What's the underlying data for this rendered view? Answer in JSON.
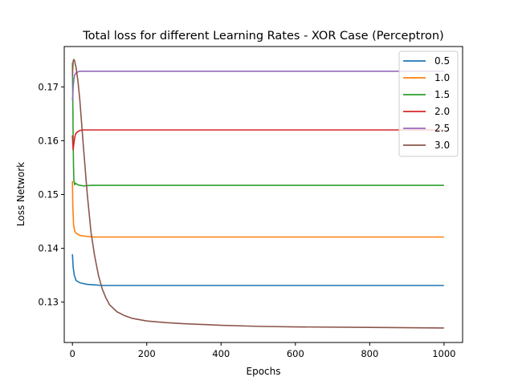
{
  "chart_data": {
    "type": "line",
    "title": "Total loss for different Learning Rates - XOR Case (Perceptron)",
    "xlabel": "Epochs",
    "ylabel": "Loss Network",
    "xlim": [
      -22,
      1050
    ],
    "ylim": [
      0.1225,
      0.1775
    ],
    "xticks": [
      0,
      200,
      400,
      600,
      800,
      1000
    ],
    "yticks": [
      0.13,
      0.14,
      0.15,
      0.16,
      0.17
    ],
    "xtick_labels": [
      "0",
      "200",
      "400",
      "600",
      "800",
      "1000"
    ],
    "ytick_labels": [
      "0.13",
      "0.14",
      "0.15",
      "0.16",
      "0.17"
    ],
    "legend": "top-right",
    "grid": false,
    "series": [
      {
        "name": "0.5",
        "color": "#1f77b4",
        "x": [
          0,
          2,
          5,
          10,
          20,
          40,
          60,
          80,
          100,
          150,
          200,
          400,
          600,
          800,
          1000
        ],
        "y": [
          0.1389,
          0.1365,
          0.135,
          0.134,
          0.1336,
          0.1333,
          0.1332,
          0.1331,
          0.1331,
          0.1331,
          0.1331,
          0.1331,
          0.1331,
          0.1331,
          0.1331
        ]
      },
      {
        "name": "1.0",
        "color": "#ff7f0e",
        "x": [
          0,
          1,
          3,
          6,
          10,
          20,
          40,
          60,
          100,
          200,
          400,
          600,
          800,
          1000
        ],
        "y": [
          0.1525,
          0.148,
          0.1445,
          0.1432,
          0.1428,
          0.1424,
          0.1422,
          0.1421,
          0.1421,
          0.1421,
          0.1421,
          0.1421,
          0.1421,
          0.1421
        ]
      },
      {
        "name": "1.5",
        "color": "#2ca02c",
        "x": [
          0,
          1,
          2,
          3,
          4,
          6,
          8,
          10,
          15,
          20,
          30,
          50,
          100,
          200,
          400,
          600,
          800,
          1000
        ],
        "y": [
          0.1745,
          0.168,
          0.16,
          0.155,
          0.1525,
          0.1518,
          0.1521,
          0.152,
          0.1518,
          0.1517,
          0.1516,
          0.1517,
          0.1517,
          0.1517,
          0.1517,
          0.1517,
          0.1517,
          0.1517
        ]
      },
      {
        "name": "2.0",
        "color": "#d62728",
        "x": [
          0,
          1,
          2,
          4,
          6,
          8,
          10,
          15,
          20,
          30,
          50,
          100,
          200,
          400,
          600,
          800,
          1000
        ],
        "y": [
          0.161,
          0.1595,
          0.1583,
          0.1595,
          0.1605,
          0.1611,
          0.1614,
          0.1617,
          0.1619,
          0.162,
          0.162,
          0.162,
          0.162,
          0.162,
          0.162,
          0.162,
          0.162
        ]
      },
      {
        "name": "2.5",
        "color": "#9467bd",
        "x": [
          0,
          1,
          2,
          4,
          6,
          10,
          15,
          20,
          30,
          50,
          100,
          200,
          400,
          600,
          800,
          1000
        ],
        "y": [
          0.1675,
          0.1683,
          0.17,
          0.1715,
          0.1722,
          0.1726,
          0.1728,
          0.1729,
          0.1729,
          0.1729,
          0.1729,
          0.1729,
          0.1729,
          0.1729,
          0.1729,
          0.1729
        ]
      },
      {
        "name": "3.0",
        "color": "#8c564b",
        "x": [
          0,
          2,
          4,
          6,
          10,
          15,
          20,
          25,
          30,
          40,
          50,
          60,
          70,
          80,
          90,
          100,
          120,
          140,
          160,
          200,
          250,
          300,
          400,
          500,
          600,
          800,
          1000
        ],
        "y": [
          0.172,
          0.1748,
          0.1751,
          0.1748,
          0.1735,
          0.171,
          0.1675,
          0.163,
          0.1585,
          0.15,
          0.143,
          0.1385,
          0.135,
          0.1325,
          0.1308,
          0.1295,
          0.1282,
          0.1275,
          0.127,
          0.1265,
          0.1262,
          0.126,
          0.1257,
          0.1255,
          0.1254,
          0.1253,
          0.1252
        ]
      }
    ]
  }
}
